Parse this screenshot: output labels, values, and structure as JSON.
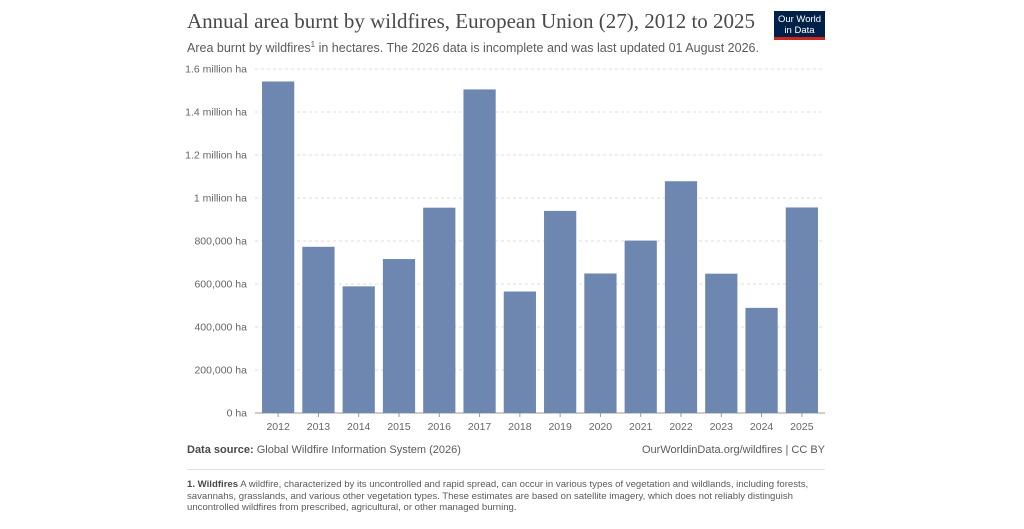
{
  "header": {
    "title": "Annual area burnt by wildfires, European Union (27), 2012 to 2025",
    "subtitle_before": "Area burnt by wildfires",
    "subtitle_sup": "1",
    "subtitle_after": " in hectares. The 2026 data is incomplete and was last updated 01 August 2026."
  },
  "logo": {
    "line1": "Our World",
    "line2": "in Data"
  },
  "chart_data": {
    "type": "bar",
    "title": "Annual area burnt by wildfires, European Union (27), 2012 to 2025",
    "categories": [
      "2012",
      "2013",
      "2014",
      "2015",
      "2016",
      "2017",
      "2018",
      "2019",
      "2020",
      "2021",
      "2022",
      "2023",
      "2024",
      "2025"
    ],
    "values": [
      1542000,
      773000,
      589000,
      716000,
      955000,
      1505000,
      565000,
      940000,
      649000,
      802000,
      1078000,
      648000,
      489000,
      956000
    ],
    "ylim": [
      0,
      1600000
    ],
    "yticks": [
      {
        "value": 0,
        "label": "0 ha"
      },
      {
        "value": 200000,
        "label": "200,000 ha"
      },
      {
        "value": 400000,
        "label": "400,000 ha"
      },
      {
        "value": 600000,
        "label": "600,000 ha"
      },
      {
        "value": 800000,
        "label": "800,000 ha"
      },
      {
        "value": 1000000,
        "label": "1 million ha"
      },
      {
        "value": 1200000,
        "label": "1.2 million ha"
      },
      {
        "value": 1400000,
        "label": "1.4 million ha"
      },
      {
        "value": 1600000,
        "label": "1.6 million ha"
      }
    ],
    "grid": true,
    "bar_color": "#6d87b0"
  },
  "footer": {
    "source_label": "Data source:",
    "source_text": " Global Wildfire Information System (2026)",
    "credit": "OurWorldinData.org/wildfires | CC BY",
    "footnote_term": "1. Wildfires",
    "footnote_text": " A wildfire, characterized by its uncontrolled and rapid spread, can occur in various types of vegetation and wildlands, including forests, savannahs, grasslands, and various other vegetation types. These estimates are based on satellite imagery, which does not reliably distinguish uncontrolled wildfires from prescribed, agricultural, or other managed burning."
  }
}
